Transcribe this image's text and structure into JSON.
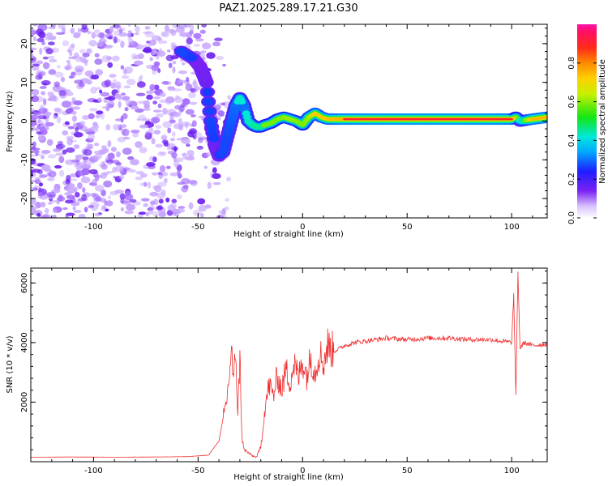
{
  "title": "PAZ1.2025.289.17.21.G30",
  "colors": {
    "line": "#f03030",
    "ridge_peak": "#e8203a",
    "noise_light": "#c8a8ff",
    "noise_dark": "#6a1cf0"
  },
  "chart_data": [
    {
      "type": "heatmap",
      "name": "spectrogram",
      "xlabel": "Height of straight line (km)",
      "ylabel": "Frequency (Hz)",
      "xlim": [
        -130,
        117
      ],
      "ylim": [
        -25,
        25
      ],
      "xticks": [
        -100,
        -50,
        0,
        50,
        100
      ],
      "yticks": [
        -20,
        -10,
        0,
        10,
        20
      ],
      "colorbar": {
        "label": "Normalized spectral amplitude",
        "range": [
          0,
          1
        ],
        "ticks": [
          "0.0",
          "0.2",
          "0.4",
          "0.6",
          "0.8"
        ],
        "tick_values": [
          0.0,
          0.2,
          0.4,
          0.6,
          0.8
        ],
        "colormap": "rainbow (white-violet-blue-cyan-green-yellow-red-magenta)"
      },
      "ridge": {
        "description": "dominant frequency track vs height",
        "x": [
          -58,
          -55,
          -52,
          -49,
          -46,
          -44,
          -42,
          -40,
          -38,
          -36,
          -34,
          -32,
          -30,
          -28,
          -26,
          -24,
          -22,
          -20,
          -18,
          -15,
          -12,
          -9,
          -6,
          -3,
          0,
          3,
          6,
          9,
          12,
          20,
          40,
          60,
          80,
          100,
          102,
          104,
          110,
          117
        ],
        "freq": [
          18,
          17,
          16,
          14,
          10,
          0,
          -6,
          -9,
          -8,
          -4,
          0,
          4,
          6,
          4,
          0,
          -1,
          -1.5,
          -1.5,
          -1,
          -0.5,
          0.5,
          1,
          0.5,
          0,
          -1,
          1,
          2,
          1,
          0.5,
          0.5,
          0.5,
          0.5,
          0.5,
          0.5,
          1,
          0,
          0.5,
          1
        ],
        "amp": [
          0.3,
          0.3,
          0.25,
          0.2,
          0.25,
          0.3,
          0.25,
          0.25,
          0.3,
          0.3,
          0.35,
          0.4,
          0.45,
          0.4,
          0.45,
          0.5,
          0.55,
          0.55,
          0.6,
          0.6,
          0.6,
          0.65,
          0.7,
          0.65,
          0.6,
          0.7,
          0.75,
          0.75,
          0.8,
          0.9,
          0.95,
          0.95,
          0.95,
          0.9,
          0.6,
          0.4,
          0.85,
          0.85
        ]
      },
      "noise_region": {
        "x_range": [
          -130,
          -35
        ],
        "freq_range": [
          -25,
          25
        ]
      }
    },
    {
      "type": "line",
      "name": "snr",
      "xlabel": "Height of straight line (km)",
      "ylabel": "SNR (10 * v/v)",
      "xlim": [
        -130,
        117
      ],
      "ylim": [
        0,
        6500
      ],
      "xticks": [
        -100,
        -50,
        0,
        50,
        100
      ],
      "yticks": [
        2000,
        4000,
        6000
      ],
      "series": [
        {
          "name": "SNR",
          "x": [
            -130,
            -110,
            -90,
            -70,
            -55,
            -45,
            -40,
            -36,
            -35,
            -34,
            -33,
            -32,
            -31,
            -30,
            -29,
            -28,
            -26,
            -24,
            -22,
            -20,
            -18,
            -16,
            -14,
            -12,
            -10,
            -8,
            -6,
            -4,
            -2,
            0,
            2,
            4,
            6,
            8,
            10,
            12,
            15,
            20,
            25,
            30,
            35,
            40,
            50,
            60,
            70,
            80,
            90,
            95,
            100,
            101,
            102,
            103,
            104,
            106,
            110,
            117
          ],
          "y": [
            150,
            160,
            150,
            160,
            170,
            220,
            700,
            2200,
            3000,
            3800,
            2500,
            3900,
            1500,
            3600,
            800,
            400,
            300,
            200,
            150,
            500,
            1800,
            2600,
            2200,
            2900,
            2400,
            3100,
            2700,
            3300,
            2800,
            3400,
            2900,
            3500,
            3000,
            3700,
            3300,
            3900,
            3700,
            3900,
            4000,
            4050,
            4100,
            4150,
            4100,
            4150,
            4150,
            4100,
            4100,
            4050,
            4000,
            5600,
            2200,
            6400,
            3800,
            4000,
            3900,
            3950
          ]
        }
      ]
    }
  ]
}
